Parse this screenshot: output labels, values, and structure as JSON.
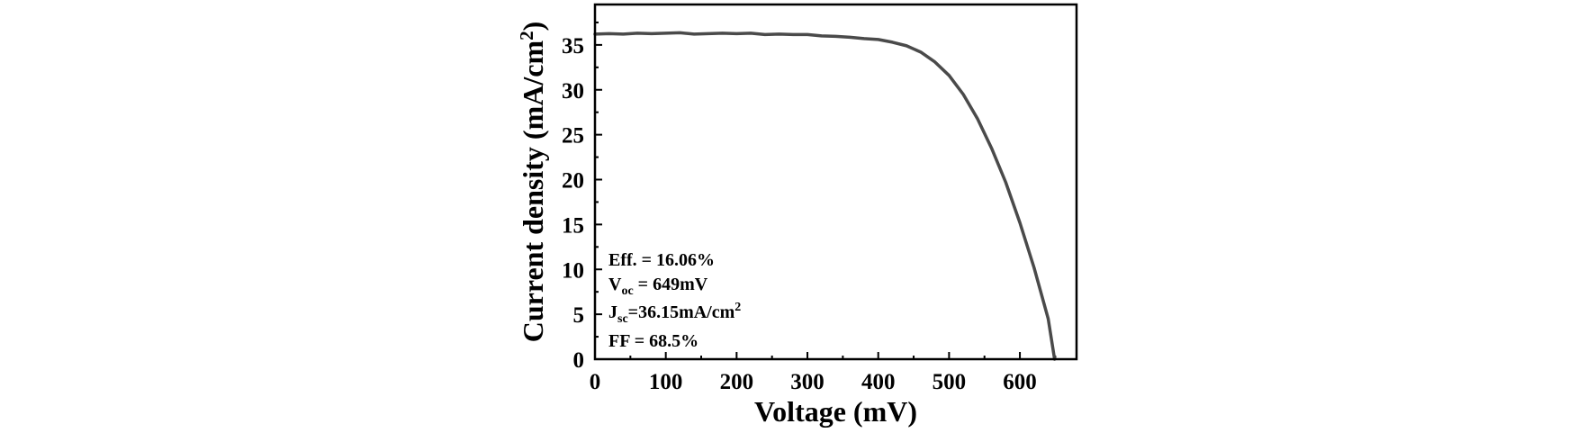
{
  "chart_data": {
    "type": "line",
    "xlabel": "Voltage (mV)",
    "ylabel_main": "Current density (mA/cm",
    "ylabel_sup": "2",
    "ylabel_close": ")",
    "xlim": [
      0,
      680
    ],
    "ylim": [
      0,
      39.5
    ],
    "xticks": [
      0,
      100,
      200,
      300,
      400,
      500,
      600
    ],
    "yticks": [
      0,
      5,
      10,
      15,
      20,
      25,
      30,
      35
    ],
    "xminor_step": 50,
    "yminor_step": 2.5,
    "grid": false,
    "line_color": "#4a4a4a",
    "series": [
      {
        "x": [
          0,
          20,
          40,
          60,
          80,
          100,
          120,
          140,
          160,
          180,
          200,
          220,
          240,
          260,
          280,
          300,
          320,
          340,
          360,
          380,
          400,
          420,
          440,
          460,
          480,
          500,
          520,
          540,
          560,
          580,
          600,
          620,
          640,
          649
        ],
        "y": [
          36.2,
          36.25,
          36.2,
          36.3,
          36.25,
          36.3,
          36.35,
          36.2,
          36.25,
          36.3,
          36.25,
          36.3,
          36.15,
          36.2,
          36.15,
          36.15,
          36.0,
          35.95,
          35.85,
          35.7,
          35.6,
          35.3,
          34.9,
          34.2,
          33.1,
          31.6,
          29.5,
          26.8,
          23.5,
          19.7,
          15.2,
          10.2,
          4.5,
          0
        ]
      }
    ],
    "annotations": [
      {
        "main": "Eff. = 16.06%"
      },
      {
        "main": "V",
        "sub": "oc",
        "rest": " = 649mV"
      },
      {
        "main": "J",
        "sub": "sc",
        "rest": "=36.15mA/cm",
        "sup": "2"
      },
      {
        "main": "FF = 68.5%"
      }
    ]
  }
}
